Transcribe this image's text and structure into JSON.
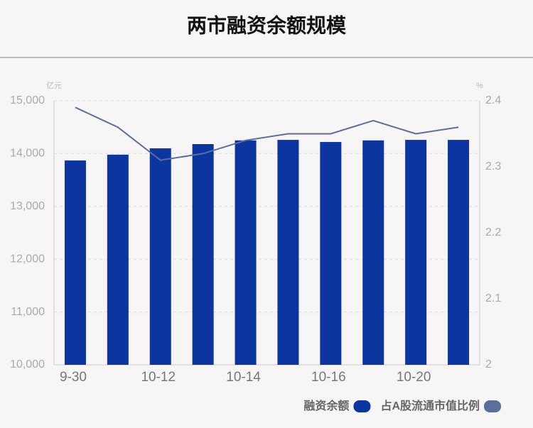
{
  "chart_data": {
    "type": "bar_line",
    "title": "两市融资余额规模",
    "categories": [
      "9-30",
      null,
      "10-12",
      null,
      "10-14",
      null,
      "10-16",
      null,
      "10-20",
      null
    ],
    "y_unit": "亿元",
    "y2_unit": "%",
    "series": [
      {
        "name": "融资余额",
        "type": "bar",
        "color": "#0c35a0",
        "values": [
          13870,
          13980,
          14100,
          14180,
          14250,
          14260,
          14220,
          14250,
          14260,
          14260
        ]
      },
      {
        "name": "占A股流通市值比例",
        "type": "line",
        "axis": "y2",
        "color": "#5b6e9c",
        "values": [
          2.39,
          2.36,
          2.31,
          2.32,
          2.34,
          2.35,
          2.35,
          2.37,
          2.35,
          2.36
        ]
      }
    ],
    "ylim": [
      10000,
      15000
    ],
    "yticks": [
      {
        "value": 10000,
        "label": "10,000"
      },
      {
        "value": 11000,
        "label": "11,000"
      },
      {
        "value": 12000,
        "label": "12,000"
      },
      {
        "value": 13000,
        "label": "13,000"
      },
      {
        "value": 14000,
        "label": "14,000"
      },
      {
        "value": 15000,
        "label": "15,000"
      }
    ],
    "y2lim": [
      2,
      2.4
    ],
    "y2ticks": [
      2,
      2.1,
      2.2,
      2.3,
      2.4
    ],
    "grid": true,
    "legend": "bottom-right"
  }
}
